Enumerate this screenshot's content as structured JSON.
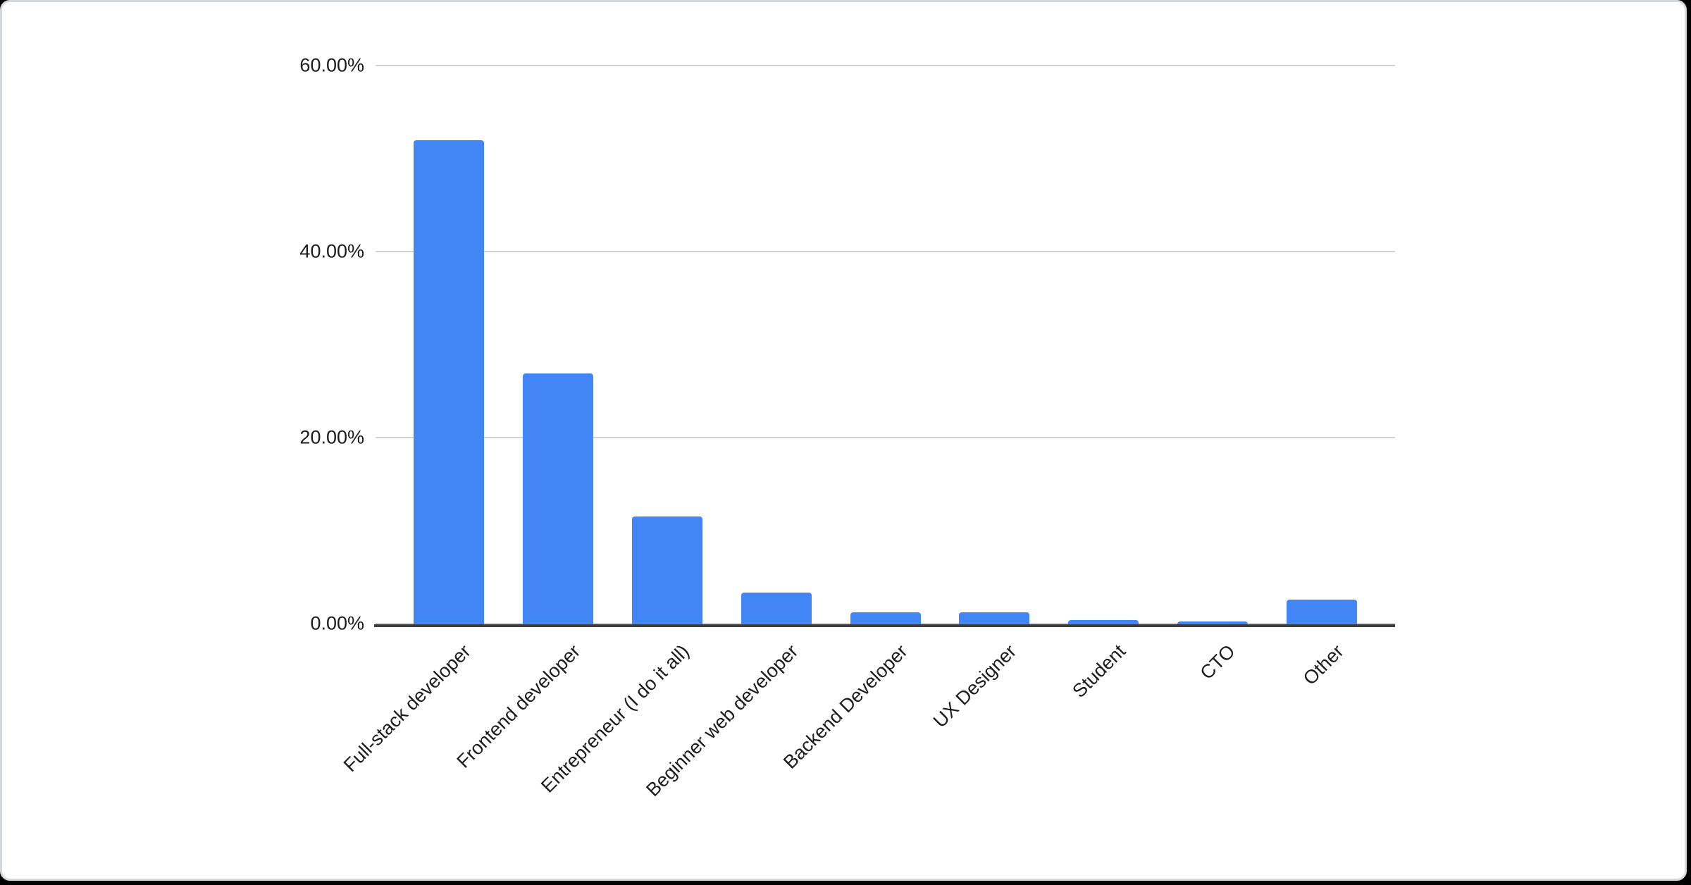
{
  "chart_data": {
    "type": "bar",
    "title": "",
    "categories": [
      "Full-stack developer",
      "Frontend developer",
      "Entrepreneur (I do it all)",
      "Beginner web developer",
      "Backend Developer",
      "UX Designer",
      "Student",
      "CTO",
      "Other"
    ],
    "values": [
      52.0,
      26.9,
      11.5,
      3.3,
      1.2,
      1.2,
      0.4,
      0.2,
      2.6
    ],
    "xlabel": "",
    "ylabel": "",
    "ylim": [
      0,
      60
    ],
    "y_axis_ticks": [
      {
        "value": 0,
        "label": "0.00%"
      },
      {
        "value": 20,
        "label": "20.00%"
      },
      {
        "value": 40,
        "label": "40.00%"
      },
      {
        "value": 60,
        "label": "60.00%"
      }
    ],
    "legend": "none",
    "grid": true,
    "colors": {
      "bar": "#4285f4",
      "gridline": "#d2d2d2",
      "axis_line": "#3d3d3d",
      "label_text": "#1c1c1c",
      "card_background": "#ffffff",
      "card_border": "#d6d9dc",
      "page_background": "#000000"
    }
  }
}
